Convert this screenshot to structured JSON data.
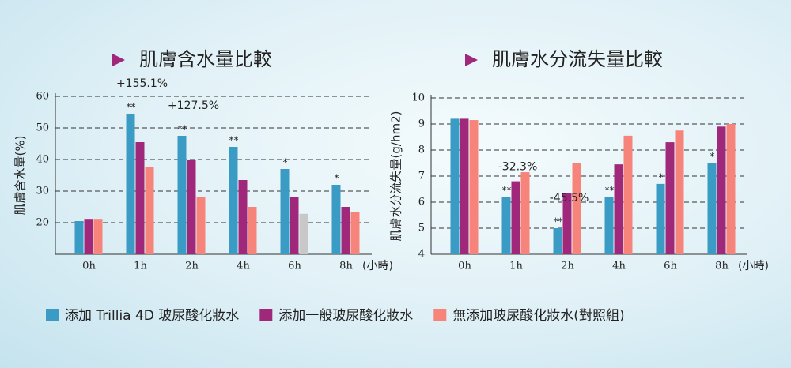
{
  "legend": [
    {
      "name": "添加 Trillia 4D 玻尿酸化妝水",
      "color": "#3a9bc4"
    },
    {
      "name": "添加一般玻尿酸化妝水",
      "color": "#a0287a"
    },
    {
      "name": "無添加玻尿酸化妝水(對照組)",
      "color": "#f7847a"
    }
  ],
  "chart_data": [
    {
      "type": "bar",
      "title": "肌膚含水量比較",
      "y_label": "肌膚含水量(%)",
      "x_unit": "(小時)",
      "categories": [
        "0h",
        "1h",
        "2h",
        "4h",
        "6h",
        "8h"
      ],
      "series": [
        {
          "values": [
            20.5,
            54.5,
            47.5,
            44,
            37,
            32
          ]
        },
        {
          "values": [
            21.2,
            45.5,
            40,
            33.5,
            28,
            25
          ]
        },
        {
          "values": [
            21.2,
            37.5,
            28.2,
            25,
            22.8,
            23.3
          ],
          "point_colors": [
            null,
            null,
            null,
            null,
            "#c8c8c8",
            null
          ]
        }
      ],
      "significance": [
        null,
        "**",
        "**",
        "**",
        "*",
        "*"
      ],
      "annotations": [
        null,
        "+155.1%",
        "+127.5%",
        null,
        null,
        null
      ],
      "ylim": [
        10,
        60
      ],
      "yticks": [
        20,
        30,
        40,
        50,
        60
      ],
      "grid": true
    },
    {
      "type": "bar",
      "title": "肌膚水分流失量比較",
      "y_label": "肌膚水分流失量(g/hm2)",
      "x_unit": "(小時)",
      "categories": [
        "0h",
        "1h",
        "2h",
        "4h",
        "6h",
        "8h"
      ],
      "series": [
        {
          "values": [
            9.2,
            6.2,
            5.0,
            6.2,
            6.7,
            7.5
          ]
        },
        {
          "values": [
            9.2,
            6.8,
            6.35,
            7.45,
            8.3,
            8.9
          ]
        },
        {
          "values": [
            9.15,
            7.15,
            7.5,
            8.55,
            8.75,
            9.0
          ]
        }
      ],
      "significance": [
        null,
        "**",
        "**",
        "**",
        "*",
        "*"
      ],
      "annotations": [
        null,
        "-32.3%",
        "-45.5%",
        null,
        null,
        null
      ],
      "ylim": [
        4,
        10
      ],
      "yticks": [
        4,
        5,
        6,
        7,
        8,
        9,
        10
      ],
      "grid": true
    }
  ]
}
